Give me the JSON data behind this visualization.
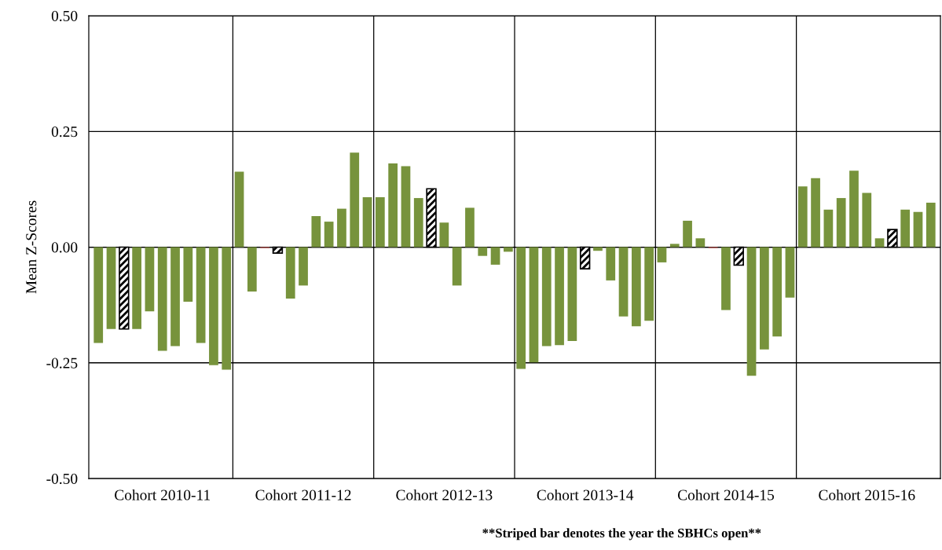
{
  "chart_data": {
    "type": "bar",
    "ylabel": "Mean Z-Scores",
    "categories": [
      null,
      null,
      null,
      null,
      null,
      "Cohort 2010-11",
      null,
      null,
      null,
      null,
      null,
      null,
      null,
      null,
      null,
      null,
      "Cohort 2011-12",
      null,
      null,
      null,
      null,
      null,
      null,
      null,
      null,
      null,
      null,
      "Cohort 2012-13",
      null,
      null,
      null,
      null,
      null,
      null,
      null,
      null,
      null,
      null,
      "Cohort 2013-14",
      null,
      null,
      null,
      null,
      null,
      null,
      null,
      null,
      null,
      null,
      "Cohort 2014-15",
      null,
      null,
      null,
      null,
      null,
      null,
      null,
      null,
      null,
      null,
      "Cohort 2015-16",
      null,
      null,
      null,
      null,
      null
    ],
    "values": [
      -0.207,
      -0.177,
      -0.177,
      -0.177,
      -0.139,
      -0.224,
      -0.214,
      -0.118,
      -0.207,
      -0.255,
      -0.265,
      0.163,
      -0.096,
      -0.002,
      -0.013,
      -0.111,
      -0.083,
      0.067,
      0.055,
      0.083,
      0.204,
      0.108,
      0.108,
      0.181,
      0.175,
      0.106,
      0.126,
      0.053,
      -0.083,
      0.085,
      -0.019,
      -0.038,
      -0.01,
      -0.263,
      -0.249,
      -0.214,
      -0.212,
      -0.203,
      -0.047,
      -0.008,
      -0.072,
      -0.15,
      -0.171,
      -0.159,
      -0.033,
      0.007,
      0.057,
      0.019,
      -0.002,
      -0.136,
      -0.039,
      -0.278,
      -0.221,
      -0.193,
      -0.109,
      0.131,
      0.149,
      0.081,
      0.106,
      0.165,
      0.117,
      0.019,
      0.038,
      0.081,
      0.076,
      0.096
    ],
    "colors": [
      "#77933c",
      "#77933c",
      "#000000",
      "#77933c",
      "#77933c",
      "#77933c",
      "#77933c",
      "#77933c",
      "#77933c",
      "#77933c",
      "#77933c",
      "#77933c",
      "#77933c",
      "#c0504d",
      "#000000",
      "#77933c",
      "#77933c",
      "#77933c",
      "#77933c",
      "#77933c",
      "#77933c",
      "#77933c",
      "#77933c",
      "#77933c",
      "#77933c",
      "#77933c",
      "#000000",
      "#77933c",
      "#77933c",
      "#77933c",
      "#77933c",
      "#77933c",
      "#77933c",
      "#77933c",
      "#77933c",
      "#77933c",
      "#77933c",
      "#77933c",
      "#000000",
      "#77933c",
      "#77933c",
      "#77933c",
      "#77933c",
      "#77933c",
      "#77933c",
      "#77933c",
      "#77933c",
      "#77933c",
      "#c0504d",
      "#77933c",
      "#000000",
      "#77933c",
      "#77933c",
      "#77933c",
      "#77933c",
      "#77933c",
      "#77933c",
      "#77933c",
      "#77933c",
      "#77933c",
      "#77933c",
      "#77933c",
      "#000000",
      "#77933c",
      "#77933c",
      "#77933c"
    ],
    "ylim": [
      -0.5,
      0.5
    ],
    "yticks": [
      {
        "value": -0.5,
        "label": "-0.50"
      },
      {
        "value": -0.25,
        "label": "-0.25"
      },
      {
        "value": 0,
        "label": "0.00"
      },
      {
        "value": 0.25,
        "label": "0.25"
      },
      {
        "value": 0.5,
        "label": "0.50"
      }
    ],
    "grid": "y",
    "annotations": [
      "**Striped bar denotes the year the SBHCs open**"
    ]
  }
}
